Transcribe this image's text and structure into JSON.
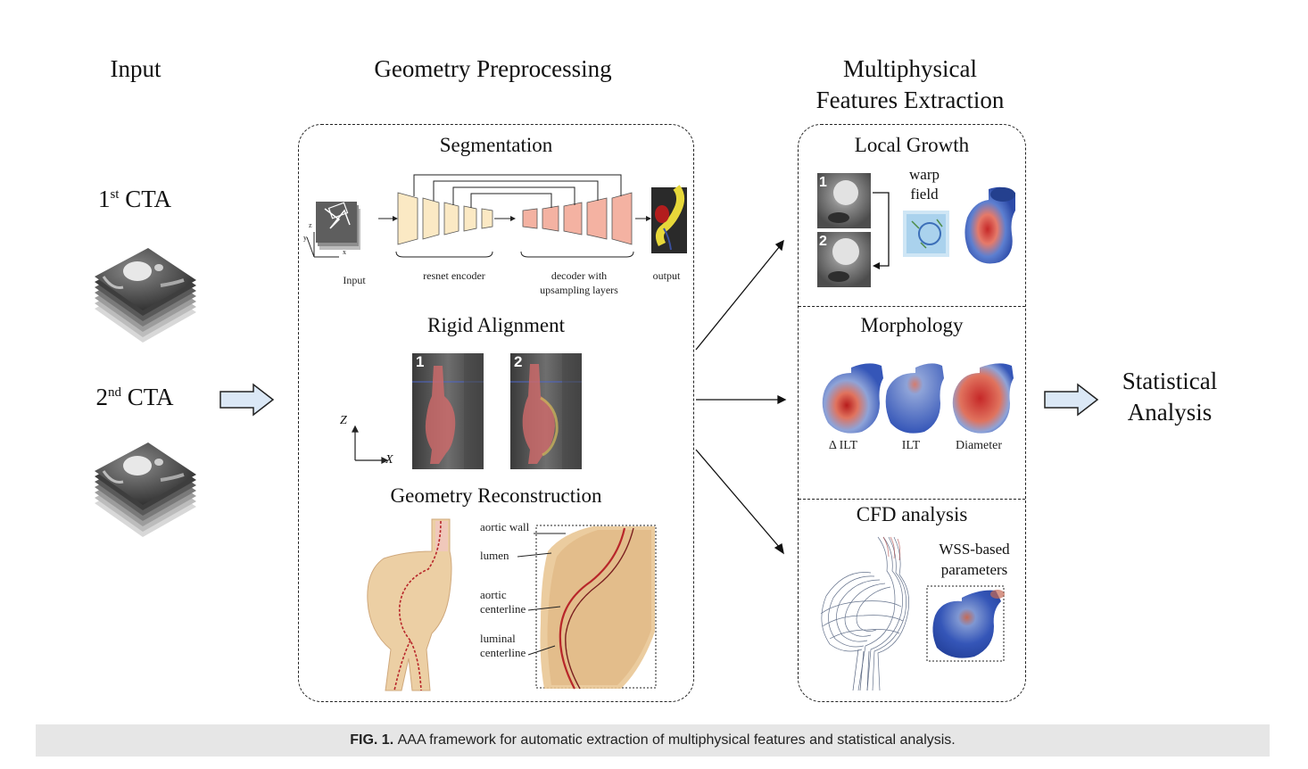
{
  "columns": {
    "input": "Input",
    "preprocessing": "Geometry Preprocessing",
    "features_line1": "Multiphysical",
    "features_line2": "Features Extraction",
    "statistical_line1": "Statistical",
    "statistical_line2": "Analysis"
  },
  "inputs": {
    "cta1_ordinal": "1",
    "cta1_sup": "st",
    "cta1_label": "CTA",
    "cta2_ordinal": "2",
    "cta2_sup": "nd",
    "cta2_label": "CTA"
  },
  "segmentation": {
    "title": "Segmentation",
    "input_label": "Input",
    "encoder_label": "resnet encoder",
    "decoder_label_1": "decoder with",
    "decoder_label_2": "upsampling layers",
    "output_label": "output",
    "axis_x": "x",
    "axis_y": "y",
    "axis_z": "z"
  },
  "rigid_alignment": {
    "title": "Rigid Alignment",
    "panel1": "1",
    "panel2": "2",
    "axis_z": "Z",
    "axis_x": "X"
  },
  "geometry_reconstruction": {
    "title": "Geometry Reconstruction",
    "labels": {
      "aortic_wall": "aortic wall",
      "lumen": "lumen",
      "aortic_centerline_1": "aortic",
      "aortic_centerline_2": "centerline",
      "luminal_centerline_1": "luminal",
      "luminal_centerline_2": "centerline"
    }
  },
  "local_growth": {
    "title": "Local Growth",
    "panel1": "1",
    "panel2": "2",
    "warp_1": "warp",
    "warp_2": "field"
  },
  "morphology": {
    "title": "Morphology",
    "labels": [
      "Δ ILT",
      "ILT",
      "Diameter"
    ]
  },
  "cfd": {
    "title": "CFD analysis",
    "wss_1": "WSS-based",
    "wss_2": "parameters"
  },
  "caption": {
    "prefix": "FIG. 1.",
    "text": "AAA framework for automatic extraction of multiphysical features and statistical analysis."
  },
  "colors": {
    "arrow_fill": "#dbe8f6",
    "encoder": "#fbe9c4",
    "decoder": "#f4b2a2",
    "aorta": "#e9c795",
    "heat_red": "#c62828",
    "heat_blue": "#3556b8",
    "caption_bg": "#e6e6e6"
  }
}
